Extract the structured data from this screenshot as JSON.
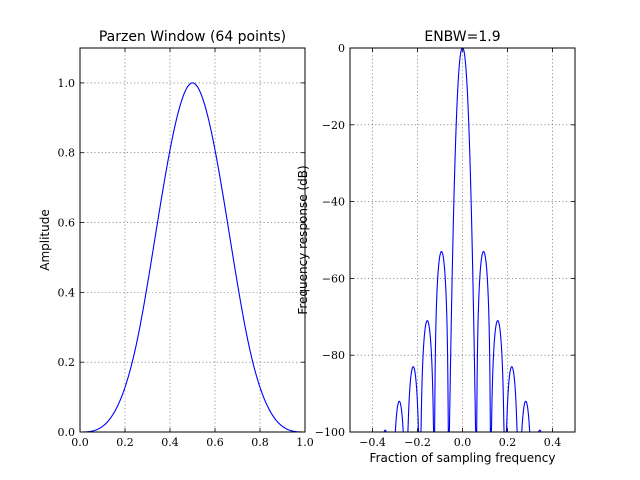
{
  "chart_data": [
    {
      "type": "line",
      "title": "Parzen Window (64 points)",
      "xlabel": "",
      "ylabel": "Amplitude",
      "xlim": [
        0.0,
        1.0
      ],
      "ylim": [
        0.0,
        1.1
      ],
      "xticks": [
        "0.0",
        "0.2",
        "0.4",
        "0.6",
        "0.8",
        "1.0"
      ],
      "yticks": [
        "0.0",
        "0.2",
        "0.4",
        "0.6",
        "0.8",
        "1.0"
      ],
      "grid": true,
      "series": [
        {
          "color": "#0000ff",
          "x": [
            0.0,
            0.05,
            0.1,
            0.15,
            0.2,
            0.25,
            0.3,
            0.35,
            0.4,
            0.45,
            0.5,
            0.55,
            0.6,
            0.65,
            0.7,
            0.75,
            0.8,
            0.85,
            0.9,
            0.95,
            1.0
          ],
          "y": [
            0.0,
            0.002,
            0.016,
            0.054,
            0.128,
            0.25,
            0.424,
            0.622,
            0.808,
            0.946,
            1.0,
            0.946,
            0.808,
            0.622,
            0.424,
            0.25,
            0.128,
            0.054,
            0.016,
            0.002,
            0.0
          ]
        }
      ]
    },
    {
      "type": "line",
      "title": "ENBW=1.9",
      "xlabel": "Fraction of sampling frequency",
      "ylabel": "Frequency response (dB)",
      "xlim": [
        -0.5,
        0.5
      ],
      "ylim": [
        -100,
        0
      ],
      "xticks": [
        "−0.4",
        "−0.2",
        "0.0",
        "0.2",
        "0.4"
      ],
      "yticks": [
        "0",
        "−20",
        "−40",
        "−60",
        "−80",
        "−100"
      ],
      "grid": true,
      "series": [
        {
          "color": "#0000ff",
          "main_lobe": {
            "center": 0.0,
            "peak": 0.0,
            "first_null": 0.062
          },
          "side_lobes": [
            {
              "center": 0.094,
              "peak": -53,
              "zeros": [
                0.062,
                0.125
              ]
            },
            {
              "center": 0.156,
              "peak": -71,
              "zeros": [
                0.125,
                0.188
              ]
            },
            {
              "center": 0.219,
              "peak": -83,
              "zeros": [
                0.188,
                0.25
              ]
            },
            {
              "center": 0.281,
              "peak": -92,
              "zeros": [
                0.25,
                0.312
              ]
            },
            {
              "center": 0.344,
              "peak": -99.5,
              "zeros": [
                0.312,
                0.375
              ]
            },
            {
              "center": -0.094,
              "peak": -53,
              "zeros": [
                -0.125,
                -0.062
              ]
            },
            {
              "center": -0.156,
              "peak": -71,
              "zeros": [
                -0.188,
                -0.125
              ]
            },
            {
              "center": -0.219,
              "peak": -83,
              "zeros": [
                -0.25,
                -0.188
              ]
            },
            {
              "center": -0.281,
              "peak": -92,
              "zeros": [
                -0.312,
                -0.25
              ]
            },
            {
              "center": -0.344,
              "peak": -99.5,
              "zeros": [
                -0.375,
                -0.312
              ]
            }
          ]
        }
      ]
    }
  ]
}
